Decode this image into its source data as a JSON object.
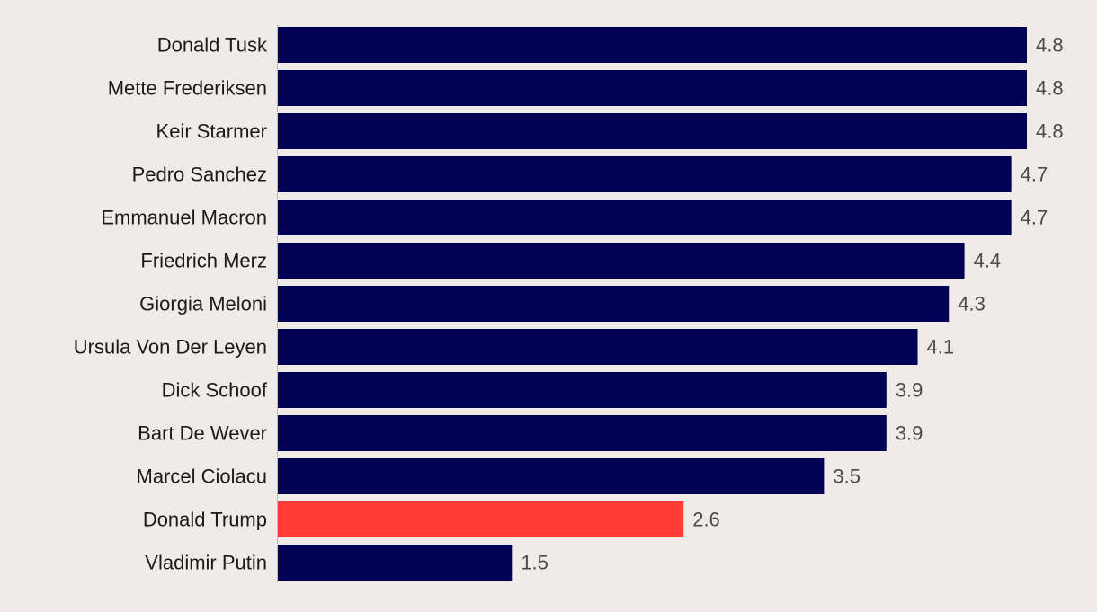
{
  "chart_data": {
    "type": "bar",
    "orientation": "horizontal",
    "categories": [
      "Donald Tusk",
      "Mette Frederiksen",
      "Keir Starmer",
      "Pedro Sanchez",
      "Emmanuel Macron",
      "Friedrich Merz",
      "Giorgia Meloni",
      "Ursula Von Der Leyen",
      "Dick Schoof",
      "Bart De Wever",
      "Marcel Ciolacu",
      "Donald Trump",
      "Vladimir Putin"
    ],
    "values": [
      4.8,
      4.8,
      4.8,
      4.7,
      4.7,
      4.4,
      4.3,
      4.1,
      3.9,
      3.9,
      3.5,
      2.6,
      1.5
    ],
    "value_labels": [
      "4.8",
      "4.8",
      "4.8",
      "4.7",
      "4.7",
      "4.4",
      "4.3",
      "4.1",
      "3.9",
      "3.9",
      "3.5",
      "2.6",
      "1.5"
    ],
    "xlim": [
      0,
      4.8
    ],
    "highlight_category": "Donald Trump",
    "bar_color": "#020255",
    "highlight_color": "#ff3b38",
    "background_color": "#f0ebe8",
    "axis_color": "#bdbdbd",
    "grid": false,
    "legend": "none"
  }
}
